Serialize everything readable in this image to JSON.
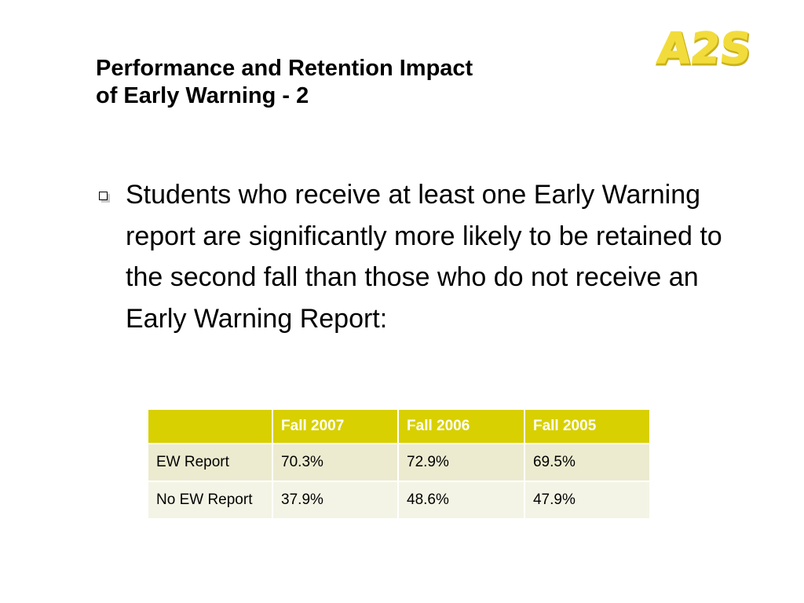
{
  "slide": {
    "title_lines": [
      "Performance and Retention Impact",
      "of Early Warning - 2"
    ],
    "logo_text": "A2S",
    "bullet_text": "Students who receive at least one Early Warning report are significantly more likely to be retained to the second fall than those who do not receive an Early Warning Report:",
    "colors": {
      "logo_fill": "#f2dc3c",
      "table_header": "#d8d000",
      "row_odd": "#ecebd0",
      "row_even": "#f4f4e6"
    }
  },
  "table": {
    "headers": [
      "",
      "Fall 2007",
      "Fall 2006",
      "Fall 2005"
    ],
    "rows": [
      [
        "EW Report",
        "70.3%",
        "72.9%",
        "69.5%"
      ],
      [
        "No EW Report",
        "37.9%",
        "48.6%",
        "47.9%"
      ]
    ]
  }
}
